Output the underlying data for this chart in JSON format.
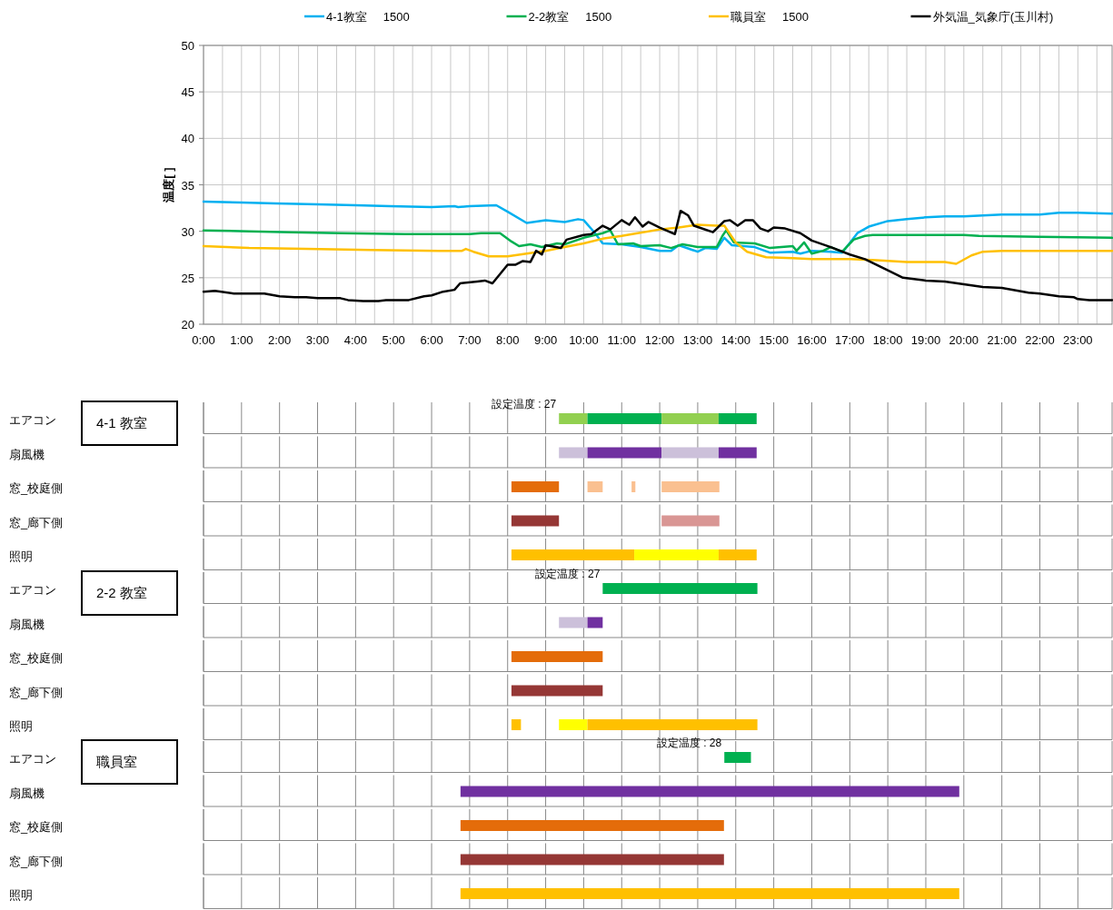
{
  "chart_data": [
    {
      "type": "line",
      "ylabel": "温度[ ]",
      "legend": "top",
      "grid": true,
      "xlim": [
        0,
        23.9
      ],
      "ylim": [
        20,
        50
      ],
      "yticks": [
        20,
        25,
        30,
        35,
        40,
        45,
        50
      ],
      "xticks": [
        {
          "value": 0,
          "label": "0:00"
        },
        {
          "value": 0.5,
          "label": null
        },
        {
          "value": 1,
          "label": "1:00"
        },
        {
          "value": 1.5,
          "label": null
        },
        {
          "value": 2,
          "label": "2:00"
        },
        {
          "value": 2.5,
          "label": null
        },
        {
          "value": 3,
          "label": "3:00"
        },
        {
          "value": 3.5,
          "label": null
        },
        {
          "value": 4,
          "label": "4:00"
        },
        {
          "value": 4.5,
          "label": null
        },
        {
          "value": 5,
          "label": "5:00"
        },
        {
          "value": 5.5,
          "label": null
        },
        {
          "value": 6,
          "label": "6:00"
        },
        {
          "value": 6.5,
          "label": null
        },
        {
          "value": 7,
          "label": "7:00"
        },
        {
          "value": 7.5,
          "label": null
        },
        {
          "value": 8,
          "label": "8:00"
        },
        {
          "value": 8.5,
          "label": null
        },
        {
          "value": 9,
          "label": "9:00"
        },
        {
          "value": 9.5,
          "label": null
        },
        {
          "value": 10,
          "label": "10:00"
        },
        {
          "value": 10.5,
          "label": null
        },
        {
          "value": 11,
          "label": "11:00"
        },
        {
          "value": 11.5,
          "label": null
        },
        {
          "value": 12,
          "label": "12:00"
        },
        {
          "value": 12.5,
          "label": null
        },
        {
          "value": 13,
          "label": "13:00"
        },
        {
          "value": 13.5,
          "label": null
        },
        {
          "value": 14,
          "label": "14:00"
        },
        {
          "value": 14.5,
          "label": null
        },
        {
          "value": 15,
          "label": "15:00"
        },
        {
          "value": 15.5,
          "label": null
        },
        {
          "value": 16,
          "label": "16:00"
        },
        {
          "value": 16.5,
          "label": null
        },
        {
          "value": 17,
          "label": "17:00"
        },
        {
          "value": 17.5,
          "label": null
        },
        {
          "value": 18,
          "label": "18:00"
        },
        {
          "value": 18.5,
          "label": null
        },
        {
          "value": 19,
          "label": "19:00"
        },
        {
          "value": 19.5,
          "label": null
        },
        {
          "value": 20,
          "label": "20:00"
        },
        {
          "value": 20.5,
          "label": null
        },
        {
          "value": 21,
          "label": "21:00"
        },
        {
          "value": 21.5,
          "label": null
        },
        {
          "value": 22,
          "label": "22:00"
        },
        {
          "value": 22.5,
          "label": null
        },
        {
          "value": 23,
          "label": "23:00"
        },
        {
          "value": 23.5,
          "label": null
        }
      ],
      "series": [
        {
          "name": "4-1教室     1500",
          "color": "#00b0f0",
          "x": [
            0,
            1,
            1.9,
            3,
            4,
            4.9,
            6,
            6.6,
            6.7,
            7,
            7.7,
            8,
            8.5,
            9,
            9.5,
            9.85,
            10,
            10.3,
            10.5,
            11,
            11.5,
            12,
            12.3,
            12.5,
            13,
            13.2,
            13.5,
            13.7,
            13.9,
            14.5,
            14.9,
            15.5,
            15.7,
            16,
            16.5,
            16.8,
            17.2,
            17.5,
            18,
            18.5,
            19,
            19.5,
            20,
            21,
            22,
            22.5,
            23,
            23.9
          ],
          "values": [
            33.2,
            33.1,
            33.0,
            32.9,
            32.8,
            32.7,
            32.6,
            32.7,
            32.6,
            32.7,
            32.8,
            32.1,
            30.9,
            31.2,
            31.0,
            31.3,
            31.2,
            29.8,
            28.7,
            28.6,
            28.3,
            27.9,
            27.9,
            28.5,
            27.8,
            28.2,
            28.1,
            29.3,
            28.5,
            28.3,
            27.7,
            27.8,
            27.6,
            27.9,
            27.8,
            27.7,
            29.8,
            30.5,
            31.1,
            31.3,
            31.5,
            31.6,
            31.6,
            31.8,
            31.8,
            32.0,
            32.0,
            31.9
          ]
        },
        {
          "name": "2-2教室     1500",
          "color": "#00b050",
          "x": [
            0,
            1.2,
            2.3,
            3.6,
            5.3,
            7.0,
            7.3,
            7.8,
            8.1,
            8.3,
            8.6,
            8.9,
            9.3,
            9.5,
            10,
            10.5,
            10.7,
            10.9,
            11.3,
            11.5,
            12,
            12.3,
            12.6,
            13,
            13.5,
            13.65,
            13.75,
            13.95,
            14.5,
            14.9,
            15.5,
            15.6,
            15.8,
            16,
            16.3,
            16.5,
            16.8,
            17.1,
            17.4,
            17.6,
            20,
            20.4,
            22,
            23.9
          ],
          "values": [
            30.1,
            30.0,
            29.9,
            29.8,
            29.7,
            29.7,
            29.8,
            29.8,
            28.9,
            28.4,
            28.6,
            28.3,
            28.7,
            28.6,
            29.3,
            29.8,
            30.1,
            28.6,
            28.7,
            28.4,
            28.5,
            28.2,
            28.6,
            28.3,
            28.3,
            29.5,
            30.1,
            28.8,
            28.7,
            28.2,
            28.4,
            27.9,
            28.8,
            27.6,
            27.9,
            28.3,
            27.8,
            29.1,
            29.5,
            29.6,
            29.6,
            29.5,
            29.4,
            29.3
          ]
        },
        {
          "name": "職員室     1500",
          "color": "#ffc000",
          "x": [
            0,
            1.2,
            2.7,
            4.4,
            6.2,
            6.8,
            6.9,
            7.1,
            7.5,
            8,
            8.5,
            9,
            9.5,
            10,
            10.5,
            11,
            12,
            12.5,
            13,
            13.5,
            13.7,
            14,
            14.3,
            14.8,
            15.5,
            16,
            17,
            17.7,
            18.5,
            19.5,
            19.8,
            20.2,
            20.5,
            21,
            22,
            23.9
          ],
          "values": [
            28.4,
            28.2,
            28.1,
            28.0,
            27.9,
            27.9,
            28.1,
            27.8,
            27.3,
            27.3,
            27.6,
            27.9,
            28.3,
            28.7,
            29.2,
            29.5,
            30.2,
            30.4,
            30.7,
            30.6,
            30.6,
            28.8,
            27.8,
            27.2,
            27.1,
            27.0,
            27.0,
            26.9,
            26.7,
            26.7,
            26.5,
            27.4,
            27.8,
            27.9,
            27.9,
            27.9
          ]
        },
        {
          "name": "外気温_気象庁(玉川村)",
          "color": "#000000",
          "x": [
            0,
            0.3,
            0.8,
            1.6,
            2.0,
            2.4,
            2.7,
            3.0,
            3.6,
            3.8,
            4.2,
            4.6,
            4.8,
            5.4,
            5.8,
            6.0,
            6.3,
            6.6,
            6.75,
            7.2,
            7.4,
            7.6,
            8.0,
            8.2,
            8.4,
            8.6,
            8.75,
            8.9,
            9.0,
            9.4,
            9.55,
            10.0,
            10.2,
            10.5,
            10.7,
            11.0,
            11.2,
            11.35,
            11.55,
            11.7,
            12.0,
            12.4,
            12.55,
            12.75,
            12.9,
            13.4,
            13.7,
            13.85,
            14.05,
            14.25,
            14.45,
            14.65,
            14.85,
            15.0,
            15.3,
            15.7,
            16.0,
            16.5,
            17.0,
            17.4,
            18.0,
            18.4,
            19.0,
            19.5,
            20.0,
            20.5,
            21.0,
            21.7,
            22.0,
            22.5,
            22.9,
            23.0,
            23.3,
            23.9
          ],
          "values": [
            23.5,
            23.6,
            23.3,
            23.3,
            23.0,
            22.9,
            22.9,
            22.8,
            22.8,
            22.6,
            22.5,
            22.5,
            22.6,
            22.6,
            23.0,
            23.1,
            23.5,
            23.7,
            24.4,
            24.6,
            24.7,
            24.4,
            26.4,
            26.4,
            26.8,
            26.7,
            27.9,
            27.5,
            28.5,
            28.2,
            29.1,
            29.6,
            29.7,
            30.6,
            30.2,
            31.2,
            30.7,
            31.5,
            30.5,
            31.0,
            30.4,
            29.7,
            32.2,
            31.7,
            30.6,
            29.9,
            31.1,
            31.2,
            30.6,
            31.2,
            31.2,
            30.3,
            30.0,
            30.4,
            30.3,
            29.8,
            29.0,
            28.3,
            27.5,
            27.0,
            25.8,
            25.0,
            24.7,
            24.6,
            24.3,
            24.0,
            23.9,
            23.4,
            23.3,
            23.0,
            22.9,
            22.7,
            22.6,
            22.6
          ]
        }
      ]
    },
    {
      "type": "bar",
      "orientation": "horizontal",
      "title": "4-1 教室",
      "categories": [
        "エアコン",
        "扇風機",
        "窓_校庭側",
        "窓_廊下側",
        "照明"
      ],
      "xlim": [
        0,
        23.9
      ],
      "xticks": [
        {
          "value": 0,
          "label": null
        },
        {
          "value": 1,
          "label": null
        },
        {
          "value": 2,
          "label": null
        },
        {
          "value": 3,
          "label": null
        },
        {
          "value": 4,
          "label": null
        },
        {
          "value": 5,
          "label": null
        },
        {
          "value": 6,
          "label": null
        },
        {
          "value": 7,
          "label": null
        },
        {
          "value": 8,
          "label": null
        },
        {
          "value": 9,
          "label": null
        },
        {
          "value": 10,
          "label": null
        },
        {
          "value": 11,
          "label": null
        },
        {
          "value": 12,
          "label": null
        },
        {
          "value": 13,
          "label": null
        },
        {
          "value": 14,
          "label": null
        },
        {
          "value": 15,
          "label": null
        },
        {
          "value": 16,
          "label": null
        },
        {
          "value": 17,
          "label": null
        },
        {
          "value": 18,
          "label": null
        },
        {
          "value": 19,
          "label": null
        },
        {
          "value": 20,
          "label": null
        },
        {
          "value": 21,
          "label": null
        },
        {
          "value": 22,
          "label": null
        },
        {
          "value": 23,
          "label": null
        }
      ],
      "grid": "x",
      "tick_labels": "y",
      "annotations": [
        "設定温度 : 27"
      ],
      "series": [
        {
          "base": [
            9.35,
            9.35,
            8.1,
            8.1,
            8.1
          ],
          "values": [
            0.75,
            0.75,
            1.25,
            1.25,
            3.23
          ],
          "colors": [
            "#92d050",
            "#ccc0da",
            "#e46c0a",
            "#953735",
            "#ffc000"
          ]
        },
        {
          "base": [
            10.1,
            10.1,
            10.1,
            null,
            11.33
          ],
          "values": [
            1.95,
            1.95,
            0.4,
            null,
            2.22
          ],
          "colors": [
            "#00b050",
            "#7030a0",
            "#fac090",
            null,
            "#ffff00"
          ]
        },
        {
          "base": [
            12.05,
            12.05,
            11.26,
            12.05,
            13.55
          ],
          "values": [
            1.5,
            1.5,
            0.1,
            1.52,
            1.0
          ],
          "colors": [
            "#92d050",
            "#ccc0da",
            "#fac090",
            "#d99694",
            "#ffc000"
          ]
        },
        {
          "base": [
            13.55,
            13.55,
            12.05,
            null,
            null
          ],
          "values": [
            1.0,
            1.0,
            1.52,
            null,
            null
          ],
          "colors": [
            "#00b050",
            "#7030a0",
            "#fac090",
            null,
            null
          ]
        }
      ]
    },
    {
      "type": "bar",
      "orientation": "horizontal",
      "title": "2-2 教室",
      "categories": [
        "エアコン",
        "扇風機",
        "窓_校庭側",
        "窓_廊下側",
        "照明"
      ],
      "xlim": [
        0,
        23.9
      ],
      "xticks": [
        {
          "value": 0,
          "label": null
        },
        {
          "value": 1,
          "label": null
        },
        {
          "value": 2,
          "label": null
        },
        {
          "value": 3,
          "label": null
        },
        {
          "value": 4,
          "label": null
        },
        {
          "value": 5,
          "label": null
        },
        {
          "value": 6,
          "label": null
        },
        {
          "value": 7,
          "label": null
        },
        {
          "value": 8,
          "label": null
        },
        {
          "value": 9,
          "label": null
        },
        {
          "value": 10,
          "label": null
        },
        {
          "value": 11,
          "label": null
        },
        {
          "value": 12,
          "label": null
        },
        {
          "value": 13,
          "label": null
        },
        {
          "value": 14,
          "label": null
        },
        {
          "value": 15,
          "label": null
        },
        {
          "value": 16,
          "label": null
        },
        {
          "value": 17,
          "label": null
        },
        {
          "value": 18,
          "label": null
        },
        {
          "value": 19,
          "label": null
        },
        {
          "value": 20,
          "label": null
        },
        {
          "value": 21,
          "label": null
        },
        {
          "value": 22,
          "label": null
        },
        {
          "value": 23,
          "label": null
        }
      ],
      "grid": "x",
      "tick_labels": "y",
      "annotations": [
        "設定温度 : 27"
      ],
      "series": [
        {
          "base": [
            10.5,
            9.35,
            8.1,
            8.1,
            8.1
          ],
          "values": [
            4.07,
            0.75,
            2.4,
            2.4,
            0.25
          ],
          "colors": [
            "#00b050",
            "#ccc0da",
            "#e46c0a",
            "#953735",
            "#ffc000"
          ]
        },
        {
          "base": [
            null,
            10.1,
            null,
            null,
            9.35
          ],
          "values": [
            null,
            0.4,
            null,
            null,
            0.75
          ],
          "colors": [
            null,
            "#7030a0",
            null,
            null,
            "#ffff00"
          ]
        },
        {
          "base": [
            null,
            null,
            null,
            null,
            10.1
          ],
          "values": [
            null,
            null,
            null,
            null,
            4.47
          ],
          "colors": [
            null,
            null,
            null,
            null,
            "#ffc000"
          ]
        }
      ]
    },
    {
      "type": "bar",
      "orientation": "horizontal",
      "title": "職員室",
      "categories": [
        "エアコン",
        "扇風機",
        "窓_校庭側",
        "窓_廊下側",
        "照明"
      ],
      "xlim": [
        0,
        23.9
      ],
      "xticks": [
        {
          "value": 0,
          "label": null
        },
        {
          "value": 1,
          "label": null
        },
        {
          "value": 2,
          "label": null
        },
        {
          "value": 3,
          "label": null
        },
        {
          "value": 4,
          "label": null
        },
        {
          "value": 5,
          "label": null
        },
        {
          "value": 6,
          "label": null
        },
        {
          "value": 7,
          "label": null
        },
        {
          "value": 8,
          "label": null
        },
        {
          "value": 9,
          "label": null
        },
        {
          "value": 10,
          "label": null
        },
        {
          "value": 11,
          "label": null
        },
        {
          "value": 12,
          "label": null
        },
        {
          "value": 13,
          "label": null
        },
        {
          "value": 14,
          "label": null
        },
        {
          "value": 15,
          "label": null
        },
        {
          "value": 16,
          "label": null
        },
        {
          "value": 17,
          "label": null
        },
        {
          "value": 18,
          "label": null
        },
        {
          "value": 19,
          "label": null
        },
        {
          "value": 20,
          "label": null
        },
        {
          "value": 21,
          "label": null
        },
        {
          "value": 22,
          "label": null
        },
        {
          "value": 23,
          "label": null
        }
      ],
      "grid": "x",
      "tick_labels": "y",
      "annotations": [
        "設定温度 : 28"
      ],
      "series": [
        {
          "base": [
            13.7,
            6.76,
            6.76,
            6.76,
            6.76
          ],
          "values": [
            0.7,
            13.12,
            6.93,
            6.93,
            13.12
          ],
          "colors": [
            "#00b050",
            "#7030a0",
            "#e46c0a",
            "#953735",
            "#ffc000"
          ]
        }
      ]
    }
  ]
}
